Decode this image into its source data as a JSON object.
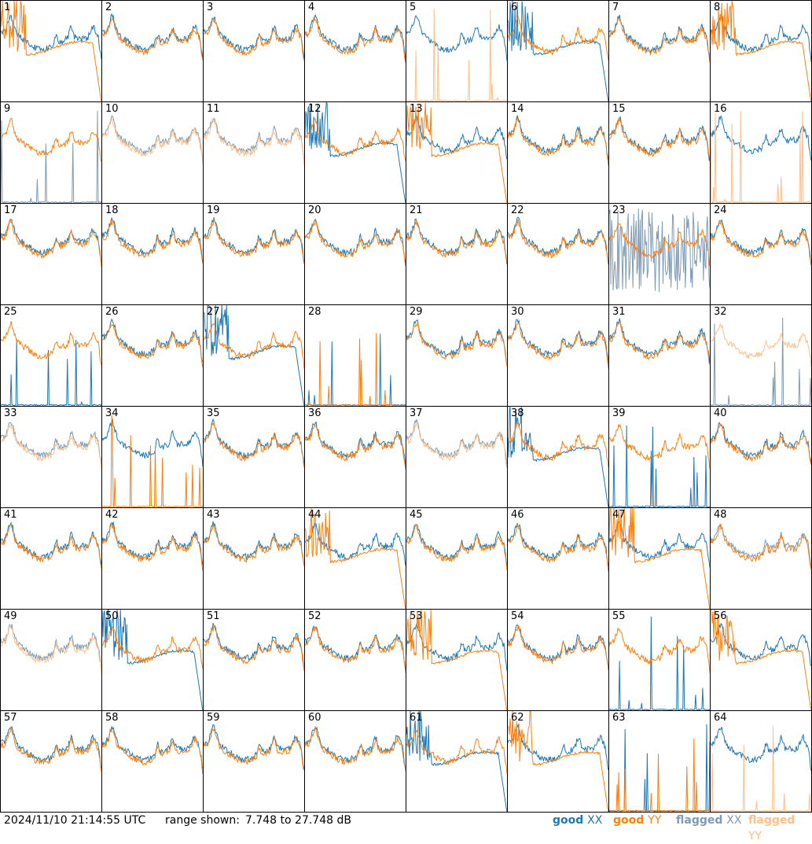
{
  "timestamp": "2024/11/10 21:14:55 UTC",
  "range": {
    "label": "range shown:",
    "text": "7.748 to 27.748 dB",
    "min_db": 7.748,
    "max_db": 27.748
  },
  "legend": [
    {
      "state": "good",
      "pol": "XX",
      "color": "#1f77b4"
    },
    {
      "state": "good",
      "pol": "YY",
      "color": "#ff7f0e"
    },
    {
      "state": "flagged",
      "pol": "XX",
      "color": "#7f9bb5"
    },
    {
      "state": "flagged",
      "pol": "YY",
      "color": "#ffbf8a"
    }
  ],
  "colors": {
    "good_xx": "#1f77b4",
    "good_yy": "#ff7f0e",
    "flagged_xx": "#7f9bb5",
    "flagged_yy": "#ffbf8a"
  },
  "chart_data": {
    "type": "line",
    "title": "",
    "xlabel": "",
    "ylabel": "",
    "ylim": [
      7.748,
      27.748
    ],
    "grid": false,
    "grid_layout": {
      "rows": 8,
      "cols": 8
    },
    "legend_placement": "bottom-right",
    "panels": [
      {
        "id": "1",
        "xx": {
          "flag": false,
          "shape": "normal"
        },
        "yy": {
          "flag": false,
          "shape": "dropout"
        }
      },
      {
        "id": "2",
        "xx": {
          "flag": false,
          "shape": "normal"
        },
        "yy": {
          "flag": false,
          "shape": "normal"
        }
      },
      {
        "id": "3",
        "xx": {
          "flag": false,
          "shape": "normal"
        },
        "yy": {
          "flag": false,
          "shape": "normal"
        }
      },
      {
        "id": "4",
        "xx": {
          "flag": false,
          "shape": "normal"
        },
        "yy": {
          "flag": false,
          "shape": "normal"
        }
      },
      {
        "id": "5",
        "xx": {
          "flag": false,
          "shape": "normal"
        },
        "yy": {
          "flag": true,
          "shape": "dead"
        }
      },
      {
        "id": "6",
        "xx": {
          "flag": false,
          "shape": "dropout"
        },
        "yy": {
          "flag": false,
          "shape": "normal"
        }
      },
      {
        "id": "7",
        "xx": {
          "flag": false,
          "shape": "normal"
        },
        "yy": {
          "flag": false,
          "shape": "normal"
        }
      },
      {
        "id": "8",
        "xx": {
          "flag": false,
          "shape": "normal"
        },
        "yy": {
          "flag": false,
          "shape": "dropout"
        }
      },
      {
        "id": "9",
        "xx": {
          "flag": true,
          "shape": "dead"
        },
        "yy": {
          "flag": false,
          "shape": "normal"
        }
      },
      {
        "id": "10",
        "xx": {
          "flag": true,
          "shape": "normal"
        },
        "yy": {
          "flag": true,
          "shape": "normal"
        }
      },
      {
        "id": "11",
        "xx": {
          "flag": true,
          "shape": "normal"
        },
        "yy": {
          "flag": true,
          "shape": "normal"
        }
      },
      {
        "id": "12",
        "xx": {
          "flag": false,
          "shape": "dropout"
        },
        "yy": {
          "flag": false,
          "shape": "normal"
        }
      },
      {
        "id": "13",
        "xx": {
          "flag": false,
          "shape": "normal"
        },
        "yy": {
          "flag": false,
          "shape": "dropout"
        }
      },
      {
        "id": "14",
        "xx": {
          "flag": false,
          "shape": "normal"
        },
        "yy": {
          "flag": false,
          "shape": "normal"
        }
      },
      {
        "id": "15",
        "xx": {
          "flag": false,
          "shape": "normal"
        },
        "yy": {
          "flag": false,
          "shape": "normal"
        }
      },
      {
        "id": "16",
        "xx": {
          "flag": false,
          "shape": "normal"
        },
        "yy": {
          "flag": true,
          "shape": "dead"
        }
      },
      {
        "id": "17",
        "xx": {
          "flag": false,
          "shape": "normal"
        },
        "yy": {
          "flag": false,
          "shape": "normal"
        }
      },
      {
        "id": "18",
        "xx": {
          "flag": false,
          "shape": "normal"
        },
        "yy": {
          "flag": false,
          "shape": "normal"
        }
      },
      {
        "id": "19",
        "xx": {
          "flag": false,
          "shape": "normal"
        },
        "yy": {
          "flag": false,
          "shape": "normal"
        }
      },
      {
        "id": "20",
        "xx": {
          "flag": false,
          "shape": "normal"
        },
        "yy": {
          "flag": false,
          "shape": "normal"
        }
      },
      {
        "id": "21",
        "xx": {
          "flag": false,
          "shape": "normal"
        },
        "yy": {
          "flag": false,
          "shape": "normal"
        }
      },
      {
        "id": "22",
        "xx": {
          "flag": false,
          "shape": "normal"
        },
        "yy": {
          "flag": false,
          "shape": "normal"
        }
      },
      {
        "id": "23",
        "xx": {
          "flag": true,
          "shape": "noisy"
        },
        "yy": {
          "flag": false,
          "shape": "normal"
        }
      },
      {
        "id": "24",
        "xx": {
          "flag": false,
          "shape": "normal"
        },
        "yy": {
          "flag": false,
          "shape": "normal"
        }
      },
      {
        "id": "25",
        "xx": {
          "flag": false,
          "shape": "dead"
        },
        "yy": {
          "flag": false,
          "shape": "normal"
        }
      },
      {
        "id": "26",
        "xx": {
          "flag": false,
          "shape": "normal"
        },
        "yy": {
          "flag": false,
          "shape": "normal"
        }
      },
      {
        "id": "27",
        "xx": {
          "flag": false,
          "shape": "dropout"
        },
        "yy": {
          "flag": false,
          "shape": "normal"
        }
      },
      {
        "id": "28",
        "xx": {
          "flag": false,
          "shape": "dead"
        },
        "yy": {
          "flag": false,
          "shape": "dead"
        }
      },
      {
        "id": "29",
        "xx": {
          "flag": false,
          "shape": "normal"
        },
        "yy": {
          "flag": false,
          "shape": "normal"
        }
      },
      {
        "id": "30",
        "xx": {
          "flag": false,
          "shape": "normal"
        },
        "yy": {
          "flag": false,
          "shape": "normal"
        }
      },
      {
        "id": "31",
        "xx": {
          "flag": false,
          "shape": "normal"
        },
        "yy": {
          "flag": false,
          "shape": "normal"
        }
      },
      {
        "id": "32",
        "xx": {
          "flag": true,
          "shape": "dead"
        },
        "yy": {
          "flag": true,
          "shape": "normal"
        }
      },
      {
        "id": "33",
        "xx": {
          "flag": true,
          "shape": "normal"
        },
        "yy": {
          "flag": true,
          "shape": "normal"
        }
      },
      {
        "id": "34",
        "xx": {
          "flag": false,
          "shape": "normal"
        },
        "yy": {
          "flag": false,
          "shape": "dead"
        }
      },
      {
        "id": "35",
        "xx": {
          "flag": false,
          "shape": "normal"
        },
        "yy": {
          "flag": false,
          "shape": "normal"
        }
      },
      {
        "id": "36",
        "xx": {
          "flag": false,
          "shape": "normal"
        },
        "yy": {
          "flag": false,
          "shape": "normal"
        }
      },
      {
        "id": "37",
        "xx": {
          "flag": true,
          "shape": "normal"
        },
        "yy": {
          "flag": true,
          "shape": "normal"
        }
      },
      {
        "id": "38",
        "xx": {
          "flag": false,
          "shape": "dropout"
        },
        "yy": {
          "flag": false,
          "shape": "normal"
        }
      },
      {
        "id": "39",
        "xx": {
          "flag": false,
          "shape": "dead"
        },
        "yy": {
          "flag": false,
          "shape": "normal"
        }
      },
      {
        "id": "40",
        "xx": {
          "flag": false,
          "shape": "normal"
        },
        "yy": {
          "flag": false,
          "shape": "normal"
        }
      },
      {
        "id": "41",
        "xx": {
          "flag": false,
          "shape": "normal"
        },
        "yy": {
          "flag": false,
          "shape": "normal"
        }
      },
      {
        "id": "42",
        "xx": {
          "flag": false,
          "shape": "normal"
        },
        "yy": {
          "flag": false,
          "shape": "normal"
        }
      },
      {
        "id": "43",
        "xx": {
          "flag": false,
          "shape": "normal"
        },
        "yy": {
          "flag": false,
          "shape": "normal"
        }
      },
      {
        "id": "44",
        "xx": {
          "flag": false,
          "shape": "normal"
        },
        "yy": {
          "flag": false,
          "shape": "dropout"
        }
      },
      {
        "id": "45",
        "xx": {
          "flag": false,
          "shape": "normal"
        },
        "yy": {
          "flag": false,
          "shape": "normal"
        }
      },
      {
        "id": "46",
        "xx": {
          "flag": false,
          "shape": "normal"
        },
        "yy": {
          "flag": false,
          "shape": "normal"
        }
      },
      {
        "id": "47",
        "xx": {
          "flag": false,
          "shape": "normal"
        },
        "yy": {
          "flag": false,
          "shape": "dropout"
        }
      },
      {
        "id": "48",
        "xx": {
          "flag": true,
          "shape": "normal"
        },
        "yy": {
          "flag": false,
          "shape": "normal"
        }
      },
      {
        "id": "49",
        "xx": {
          "flag": true,
          "shape": "normal"
        },
        "yy": {
          "flag": true,
          "shape": "normal"
        }
      },
      {
        "id": "50",
        "xx": {
          "flag": false,
          "shape": "dropout"
        },
        "yy": {
          "flag": false,
          "shape": "normal"
        }
      },
      {
        "id": "51",
        "xx": {
          "flag": false,
          "shape": "normal"
        },
        "yy": {
          "flag": false,
          "shape": "normal"
        }
      },
      {
        "id": "52",
        "xx": {
          "flag": false,
          "shape": "normal"
        },
        "yy": {
          "flag": false,
          "shape": "normal"
        }
      },
      {
        "id": "53",
        "xx": {
          "flag": false,
          "shape": "normal"
        },
        "yy": {
          "flag": false,
          "shape": "dropout"
        }
      },
      {
        "id": "54",
        "xx": {
          "flag": false,
          "shape": "normal"
        },
        "yy": {
          "flag": false,
          "shape": "normal"
        }
      },
      {
        "id": "55",
        "xx": {
          "flag": false,
          "shape": "dead"
        },
        "yy": {
          "flag": false,
          "shape": "normal"
        }
      },
      {
        "id": "56",
        "xx": {
          "flag": false,
          "shape": "normal"
        },
        "yy": {
          "flag": false,
          "shape": "dropout"
        }
      },
      {
        "id": "57",
        "xx": {
          "flag": false,
          "shape": "normal"
        },
        "yy": {
          "flag": false,
          "shape": "normal"
        }
      },
      {
        "id": "58",
        "xx": {
          "flag": false,
          "shape": "normal"
        },
        "yy": {
          "flag": false,
          "shape": "normal"
        }
      },
      {
        "id": "59",
        "xx": {
          "flag": false,
          "shape": "normal"
        },
        "yy": {
          "flag": false,
          "shape": "normal"
        }
      },
      {
        "id": "60",
        "xx": {
          "flag": false,
          "shape": "normal"
        },
        "yy": {
          "flag": false,
          "shape": "normal"
        }
      },
      {
        "id": "61",
        "xx": {
          "flag": false,
          "shape": "dropout"
        },
        "yy": {
          "flag": false,
          "shape": "normal"
        }
      },
      {
        "id": "62",
        "xx": {
          "flag": false,
          "shape": "normal"
        },
        "yy": {
          "flag": false,
          "shape": "dropout"
        }
      },
      {
        "id": "63",
        "xx": {
          "flag": false,
          "shape": "dead"
        },
        "yy": {
          "flag": false,
          "shape": "dead"
        }
      },
      {
        "id": "64",
        "xx": {
          "flag": false,
          "shape": "normal"
        },
        "yy": {
          "flag": true,
          "shape": "dead"
        }
      }
    ]
  }
}
